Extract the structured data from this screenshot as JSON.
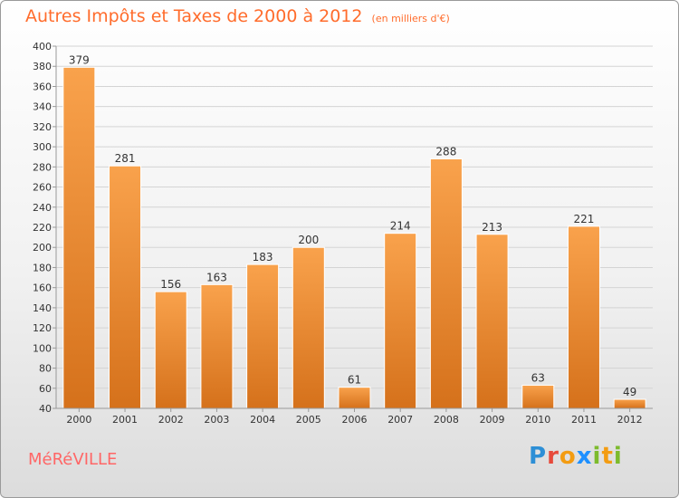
{
  "header": {
    "title": "Autres Impôts et Taxes de 2000 à 2012",
    "subtitle": "(en milliers d'€)"
  },
  "commune": "MéRéVILLE",
  "logo": "Proxiti",
  "colors": {
    "bar_top": "#f9a24c",
    "bar_bottom": "#d5711b",
    "title": "#ff6c2c",
    "commune": "#ff6666"
  },
  "chart_data": {
    "type": "bar",
    "title": "Autres Impôts et Taxes de 2000 à 2012",
    "subtitle": "(en milliers d'€)",
    "categories": [
      "2000",
      "2001",
      "2002",
      "2003",
      "2004",
      "2005",
      "2006",
      "2007",
      "2008",
      "2009",
      "2010",
      "2011",
      "2012"
    ],
    "values": [
      379,
      281,
      156,
      163,
      183,
      200,
      61,
      214,
      288,
      213,
      63,
      221,
      49
    ],
    "ylim": [
      40,
      400
    ],
    "yticks": [
      40,
      60,
      80,
      100,
      120,
      140,
      160,
      180,
      200,
      220,
      240,
      260,
      280,
      300,
      320,
      340,
      360,
      380,
      400
    ],
    "grid": true,
    "data_labels": true
  }
}
